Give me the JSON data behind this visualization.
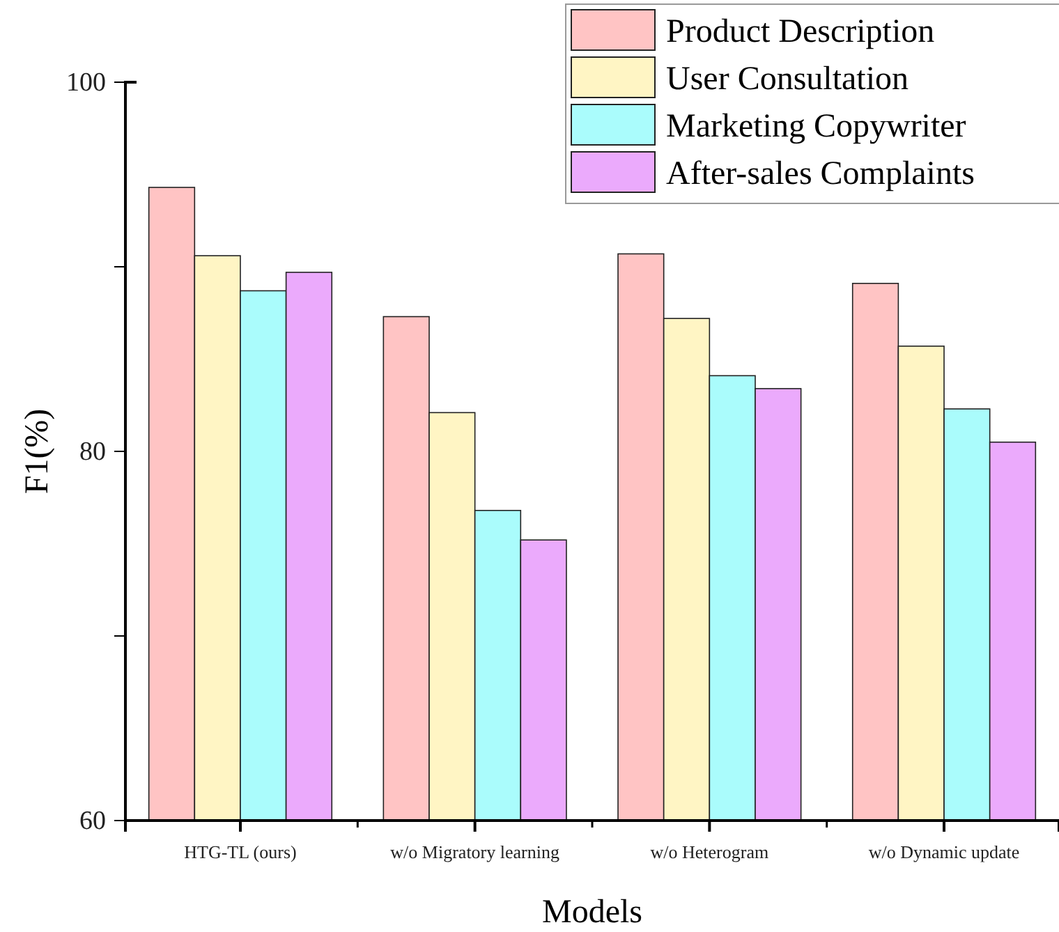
{
  "chart_data": {
    "type": "bar",
    "xlabel": "Models",
    "ylabel": "F1(%)",
    "categories": [
      "HTG-TL (ours)",
      "w/o Migratory learning",
      "w/o Heterogram",
      "w/o Dynamic update"
    ],
    "series": [
      {
        "name": "Product Description",
        "color": "#ffc4c4",
        "values": [
          94.3,
          87.3,
          90.7,
          89.1
        ]
      },
      {
        "name": "User Consultation",
        "color": "#fff5c4",
        "values": [
          90.6,
          82.1,
          87.2,
          85.7
        ]
      },
      {
        "name": "Marketing Copywriter",
        "color": "#aafcfc",
        "values": [
          88.7,
          76.8,
          84.1,
          82.3
        ]
      },
      {
        "name": "After-sales Complaints",
        "color": "#ebaafc",
        "values": [
          89.7,
          75.2,
          83.4,
          80.5
        ]
      }
    ],
    "ylim": [
      60,
      100
    ],
    "yticks": [
      60,
      {
        "value": 70,
        "label": null
      },
      80,
      {
        "value": 90,
        "label": null
      },
      100
    ],
    "grid": false,
    "legend": "top right"
  }
}
